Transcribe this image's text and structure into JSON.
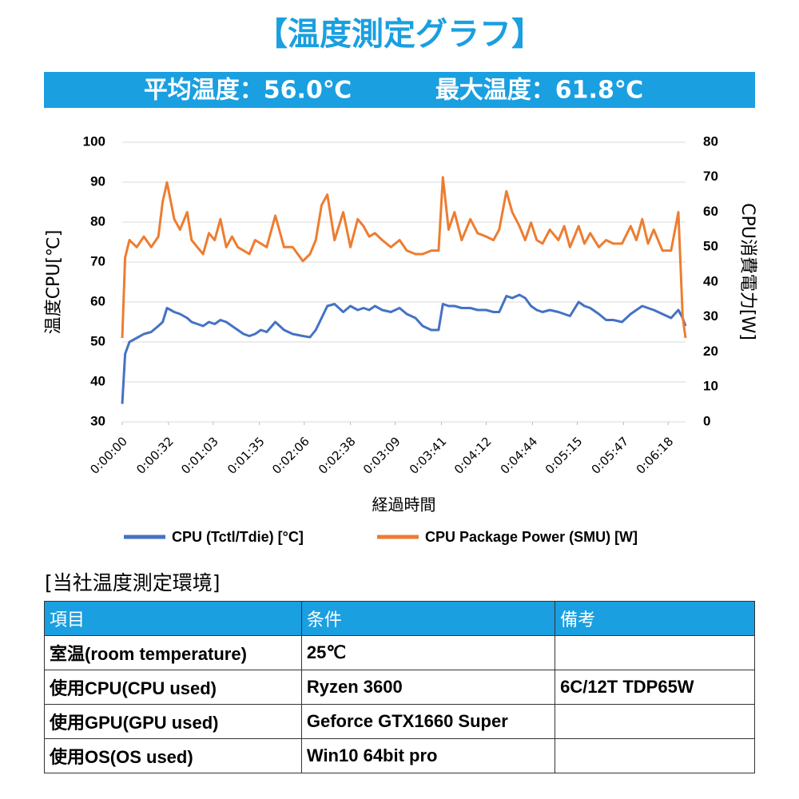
{
  "header": {
    "title": "【温度測定グラフ】",
    "stats": [
      "平均温度：56.0℃",
      "最大温度：61.8℃"
    ]
  },
  "chart_data": {
    "type": "line",
    "xlabel": "経過時間",
    "ylabel": "温度CPU[℃]",
    "y2label": "CPU消費電力[W]",
    "x": [
      0,
      2,
      5,
      10,
      15,
      20,
      25,
      28,
      31,
      36,
      40,
      45,
      48,
      52,
      56,
      60,
      64,
      68,
      72,
      76,
      80,
      84,
      88,
      92,
      96,
      100,
      106,
      112,
      118,
      125,
      130,
      134,
      138,
      142,
      147,
      153,
      158,
      163,
      167,
      171,
      175,
      180,
      186,
      192,
      197,
      203,
      208,
      214,
      219,
      222,
      226,
      230,
      235,
      241,
      246,
      252,
      257,
      261,
      266,
      270,
      275,
      279,
      283,
      287,
      291,
      296,
      302,
      306,
      310,
      316,
      320,
      324,
      330,
      335,
      340,
      346,
      352,
      356,
      360,
      364,
      368,
      374,
      380,
      385,
      388,
      390
    ],
    "xlim": [
      0,
      390
    ],
    "xticks": [
      {
        "value": 0,
        "label": "0:00:00"
      },
      {
        "value": 32,
        "label": "0:00:32"
      },
      {
        "value": 63,
        "label": "0:01:03"
      },
      {
        "value": 95,
        "label": "0:01:35"
      },
      {
        "value": 126,
        "label": "0:02:06"
      },
      {
        "value": 158,
        "label": "0:02:38"
      },
      {
        "value": 189,
        "label": "0:03:09"
      },
      {
        "value": 221,
        "label": "0:03:41"
      },
      {
        "value": 252,
        "label": "0:04:12"
      },
      {
        "value": 284,
        "label": "0:04:44"
      },
      {
        "value": 315,
        "label": "0:05:15"
      },
      {
        "value": 347,
        "label": "0:05:47"
      },
      {
        "value": 378,
        "label": "0:06:18"
      }
    ],
    "ylim": [
      30,
      100
    ],
    "yticks": [
      30,
      40,
      50,
      60,
      70,
      80,
      90,
      100
    ],
    "y2lim": [
      0,
      80
    ],
    "y2ticks": [
      0,
      10,
      20,
      30,
      40,
      50,
      60,
      70,
      80
    ],
    "grid": true,
    "legend": "bottom",
    "series": [
      {
        "name": "CPU (Tctl/Tdie) [°C]",
        "color": "#4472c4",
        "values": [
          34.5,
          47,
          50,
          51,
          52,
          52.5,
          54,
          55,
          58.5,
          57.5,
          57,
          56,
          55,
          54.5,
          54,
          55,
          54.5,
          55.5,
          55,
          54,
          53,
          52,
          51.5,
          52,
          53,
          52.5,
          55,
          53,
          52,
          51.5,
          51.2,
          53,
          56,
          59,
          59.5,
          57.5,
          59,
          58,
          58.5,
          58,
          59,
          58,
          57.5,
          58.5,
          57,
          56,
          54,
          53,
          53,
          59.5,
          59,
          59,
          58.5,
          58.5,
          58,
          58,
          57.5,
          57.5,
          61.5,
          61,
          61.8,
          61,
          59,
          58,
          57.5,
          58,
          57.5,
          57,
          56.5,
          60,
          59,
          58.5,
          57,
          55.5,
          55.5,
          55,
          57,
          58,
          59,
          58.5,
          58,
          57,
          56,
          58,
          56,
          54
        ]
      },
      {
        "name": "CPU Package Power (SMU) [W]",
        "color": "#ed7d31",
        "axis": "y2",
        "values": [
          24,
          47,
          52,
          50,
          53,
          50,
          53,
          63,
          68.5,
          58,
          55,
          60,
          52,
          50,
          48,
          54,
          52,
          58,
          50,
          53,
          50,
          49,
          48,
          52,
          51,
          50,
          59,
          50,
          50,
          46,
          48,
          52,
          62,
          65,
          52,
          60,
          50,
          58,
          56,
          53,
          54,
          52,
          50,
          52,
          49,
          48,
          48,
          49,
          49,
          70,
          55,
          60,
          52,
          58,
          54,
          53,
          52,
          55,
          66,
          60,
          56,
          52,
          57,
          52,
          51,
          55,
          52,
          56,
          50,
          56,
          51,
          54,
          50,
          52,
          51,
          51,
          56,
          52,
          58,
          51,
          55,
          49,
          49,
          60,
          30,
          24
        ]
      }
    ]
  },
  "table": {
    "label": "[当社温度測定環境]",
    "header": [
      "項目",
      "条件",
      "備考"
    ],
    "rows": [
      [
        "室温(room temperature)",
        "25℃"
      ],
      [
        "使用CPU(CPU used)",
        "Ryzen 3600",
        "6C/12T TDP65W"
      ],
      [
        "使用GPU(GPU used)",
        "Geforce GTX1660 Super"
      ],
      [
        "使用OS(OS used)",
        "Win10 64bit pro"
      ]
    ]
  }
}
